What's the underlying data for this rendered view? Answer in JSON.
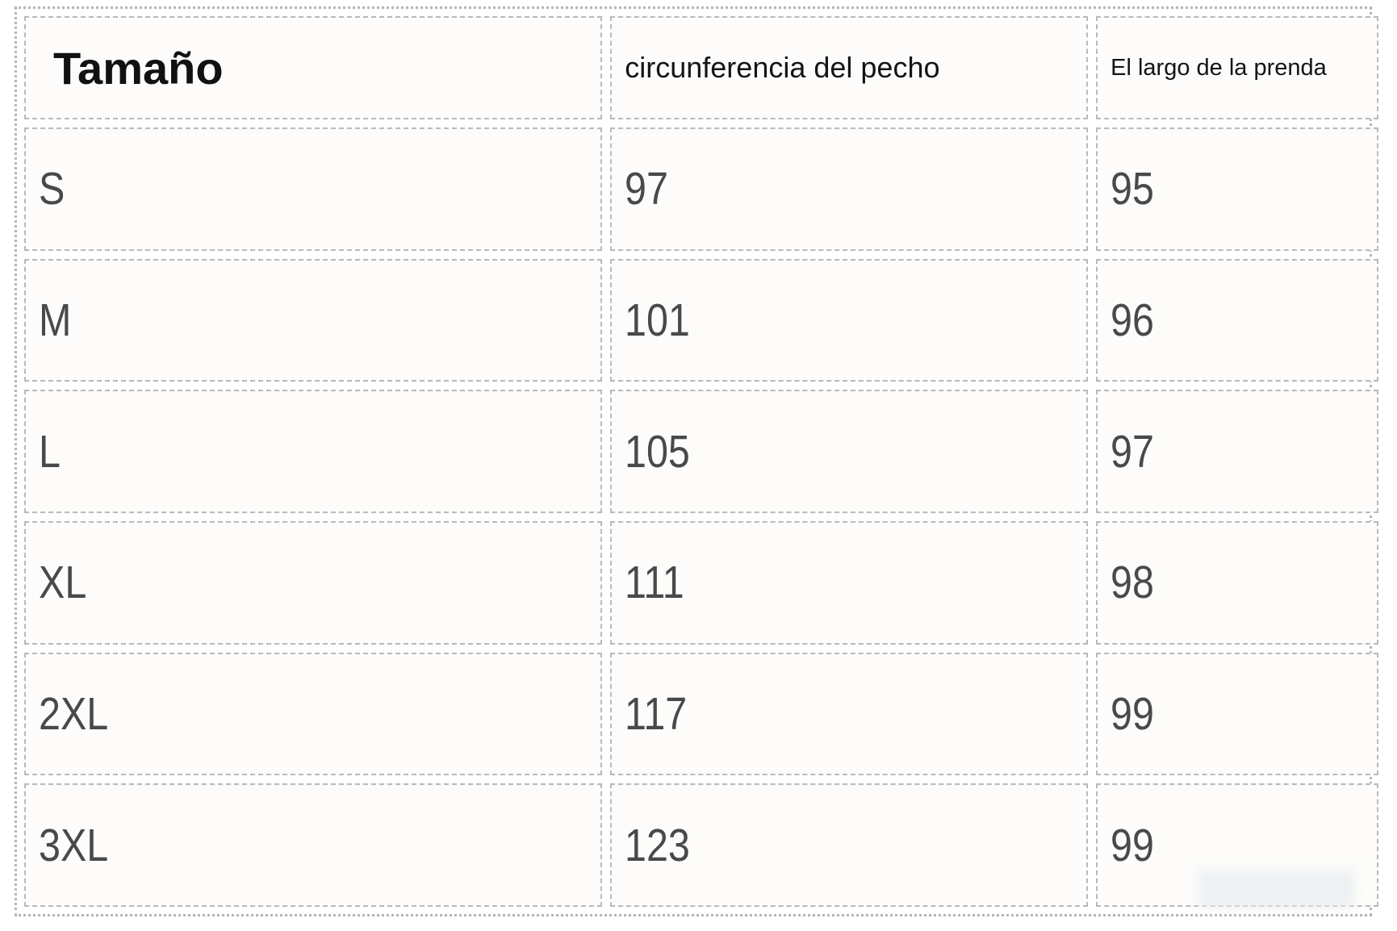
{
  "chart_data": {
    "type": "table",
    "title": "",
    "columns": [
      "Tamaño",
      "circunferencia del pecho",
      "El largo de la prenda"
    ],
    "rows": [
      [
        "S",
        "97",
        "95"
      ],
      [
        "M",
        "101",
        "96"
      ],
      [
        "L",
        "105",
        "97"
      ],
      [
        "XL",
        "111",
        "98"
      ],
      [
        "2XL",
        "117",
        "99"
      ],
      [
        "3XL",
        "123",
        "99"
      ]
    ]
  },
  "table": {
    "header": [
      "Tamaño",
      "circunferencia del pecho",
      "El largo de la prenda"
    ],
    "rows": [
      [
        "S",
        "97",
        "95"
      ],
      [
        "M",
        "101",
        "96"
      ],
      [
        "L",
        "105",
        "97"
      ],
      [
        "XL",
        "111",
        "98"
      ],
      [
        "2XL",
        "117",
        "99"
      ],
      [
        "3XL",
        "123",
        "99"
      ]
    ]
  },
  "colors": {
    "header_text": "#111111",
    "data_text": "#494949",
    "cell_border_dashed": "#b9b9b9",
    "outer_border": "#b5b5b5",
    "cell_background": "#fdfcfa",
    "page_background": "#ffffff",
    "watermark_blur": "#e9edf1"
  }
}
